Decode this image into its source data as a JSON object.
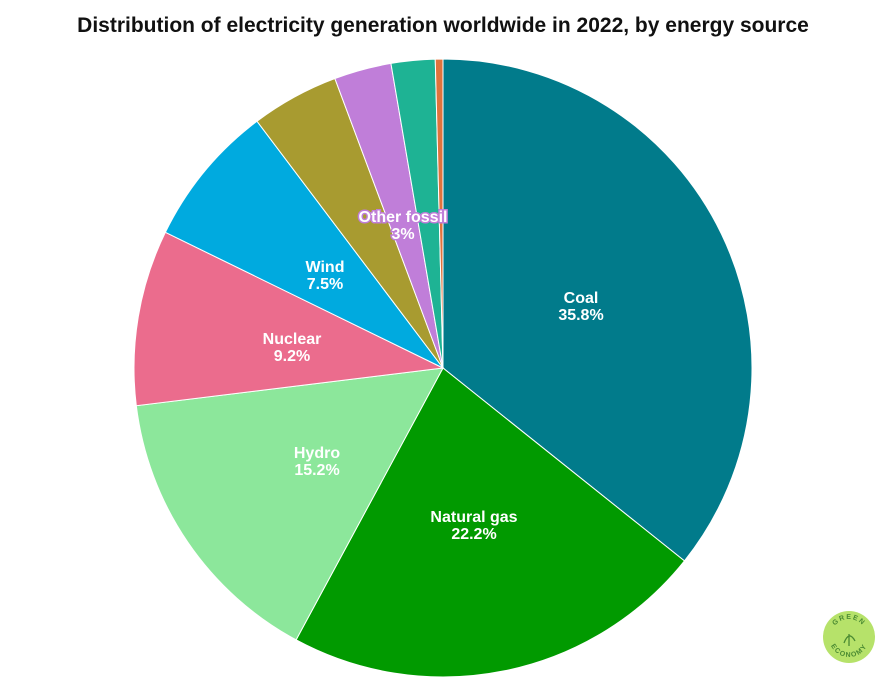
{
  "title": "Distribution of electricity generation worldwide in 2022, by energy source",
  "chart_data": {
    "type": "pie",
    "title": "Distribution of electricity generation worldwide in 2022, by energy source",
    "start_angle_deg": 0,
    "direction": "clockwise",
    "slices": [
      {
        "name": "Coal",
        "value": 35.8,
        "label": "35.8%",
        "color": "#017b8b",
        "label_color": "#ffffff",
        "show_label": true
      },
      {
        "name": "Natural gas",
        "value": 22.2,
        "label": "22.2%",
        "color": "#019a00",
        "label_color": "#ffffff",
        "show_label": true
      },
      {
        "name": "Hydro",
        "value": 15.2,
        "label": "15.2%",
        "color": "#8ce79b",
        "label_color": "#ffffff",
        "show_label": true
      },
      {
        "name": "Nuclear",
        "value": 9.2,
        "label": "9.2%",
        "color": "#eb6c8d",
        "label_color": "#ffffff",
        "show_label": true
      },
      {
        "name": "Wind",
        "value": 7.5,
        "label": "7.5%",
        "color": "#00aadf",
        "label_color": "#ffffff",
        "show_label": true
      },
      {
        "name": "",
        "value": 4.6,
        "label": "",
        "color": "#a89b30",
        "label_color": "#ffffff",
        "show_label": false
      },
      {
        "name": "Other fossil",
        "value": 3.0,
        "label": "3%",
        "color": "#c07ed9",
        "label_color": "#ffffff",
        "show_label": true
      },
      {
        "name": "",
        "value": 2.3,
        "label": "",
        "color": "#1eb394",
        "label_color": "#ffffff",
        "show_label": false
      },
      {
        "name": "",
        "value": 0.4,
        "label": "",
        "color": "#e0733d",
        "label_color": "#ffffff",
        "show_label": false
      }
    ]
  },
  "badge": {
    "text_top": "GREEN",
    "text_bottom": "ECONOMY",
    "color": "#b6e26a",
    "text_color": "#4a8a32"
  }
}
